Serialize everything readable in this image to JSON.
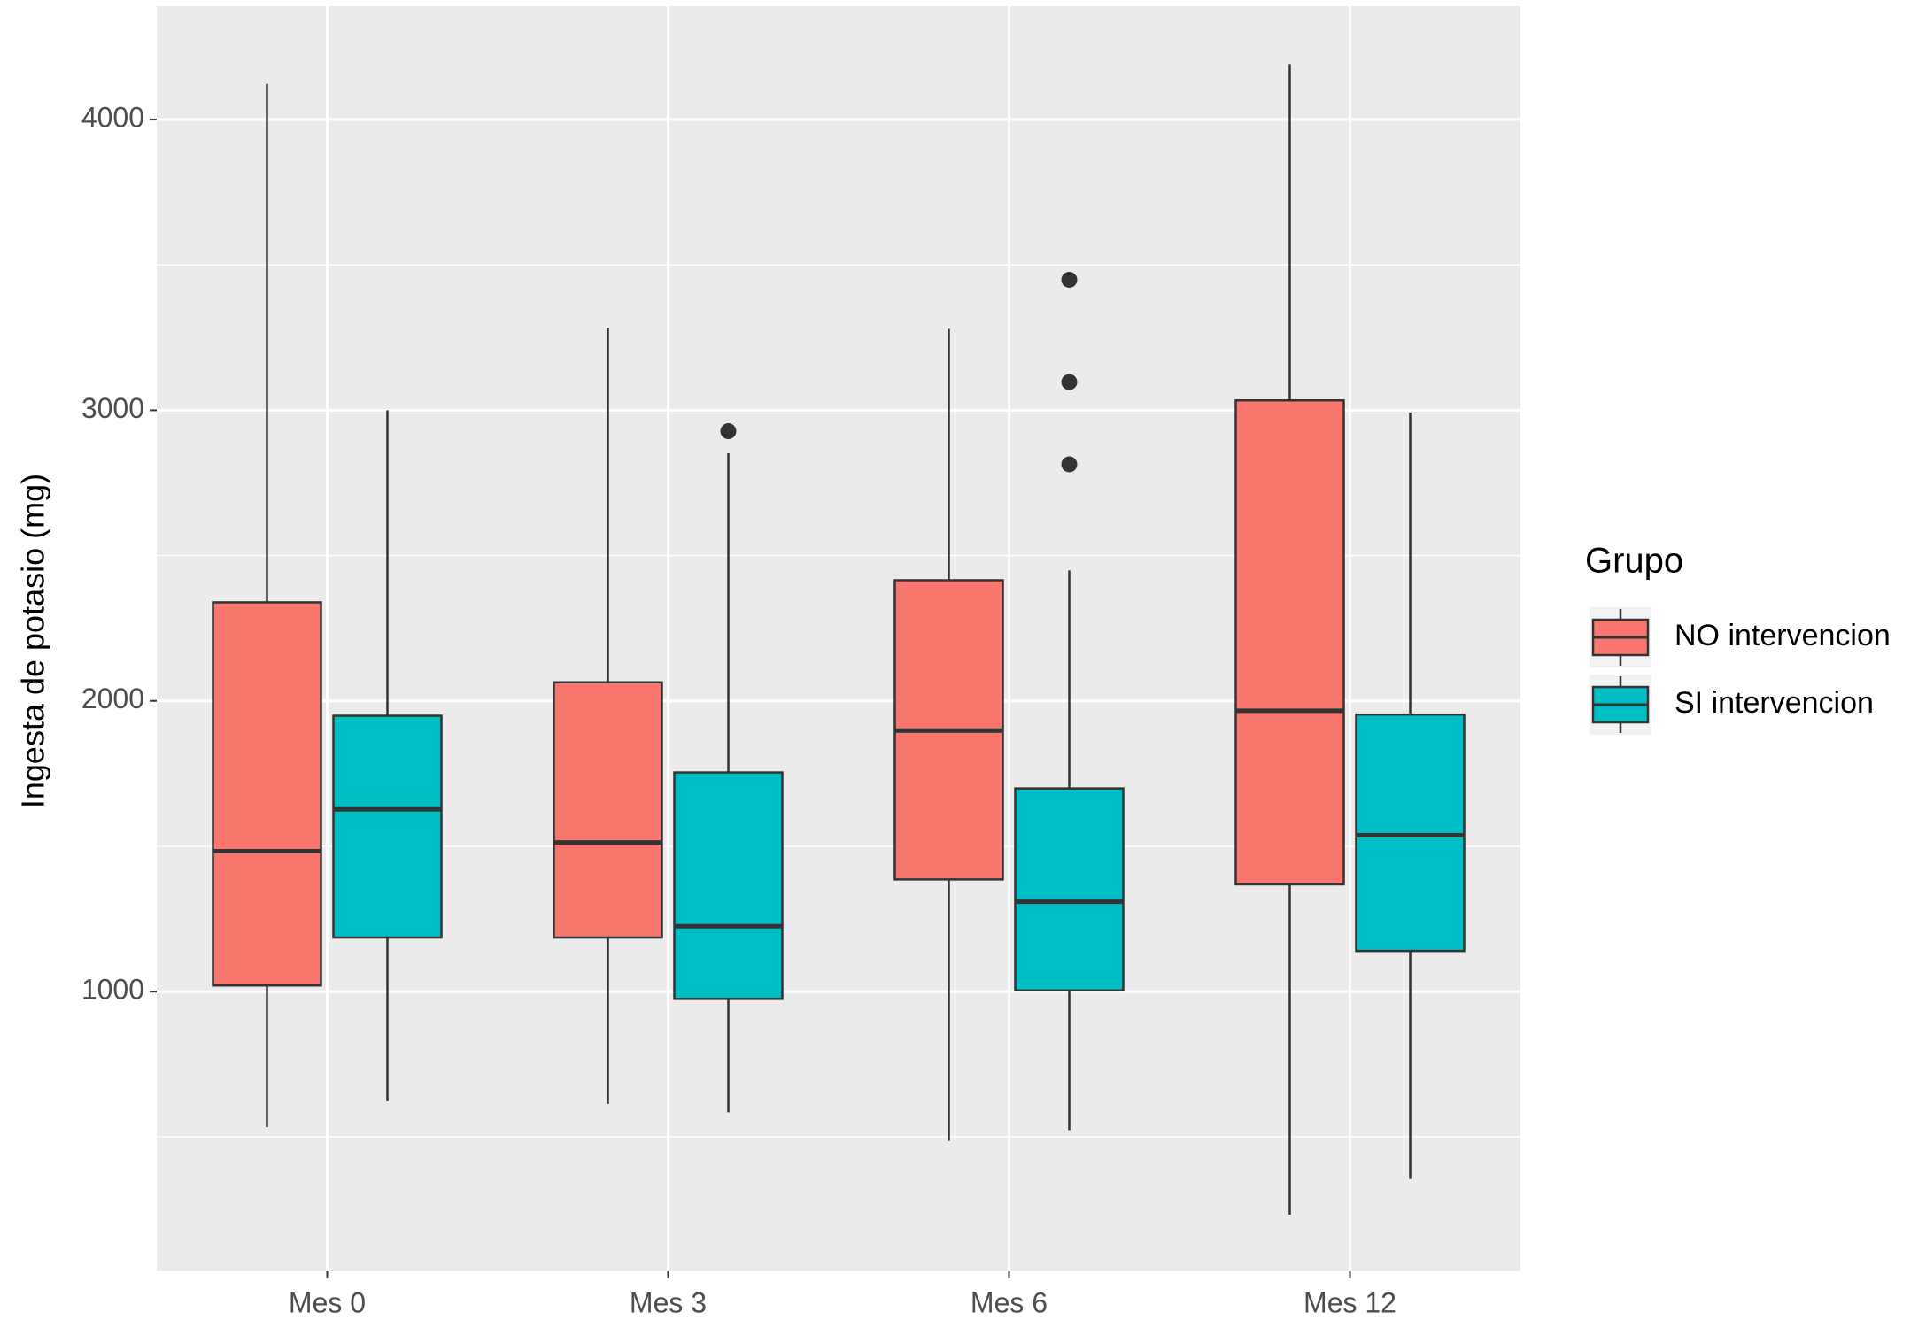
{
  "chart_data": {
    "type": "boxplot",
    "y_label": "Ingesta de potasio (mg)",
    "categories": [
      "Mes 0",
      "Mes 3",
      "Mes 6",
      "Mes 12"
    ],
    "legend_title": "Grupo",
    "series": [
      {
        "name": "NO intervencion",
        "color": "#f8766d",
        "whisker_low": [
          534,
          614,
          487,
          233
        ],
        "q1": [
          1021,
          1186,
          1386,
          1369
        ],
        "median": [
          1483,
          1513,
          1898,
          1966
        ],
        "q3": [
          2339,
          2064,
          2415,
          3034
        ],
        "whisker_high": [
          4123,
          3284,
          3280,
          4191
        ],
        "outliers": [
          [],
          [],
          [],
          []
        ]
      },
      {
        "name": "SI intervencion",
        "color": "#00bfc4",
        "whisker_low": [
          623,
          585,
          521,
          356
        ],
        "q1": [
          1186,
          975,
          1004,
          1140
        ],
        "median": [
          1627,
          1225,
          1309,
          1538
        ],
        "q3": [
          1949,
          1754,
          1699,
          1953
        ],
        "whisker_high": [
          3000,
          2852,
          2449,
          2992
        ],
        "outliers": [
          [],
          [
            2928
          ],
          [
            3449,
            3097,
            2814
          ],
          []
        ]
      }
    ],
    "ylim": [
      38,
      4390
    ],
    "yticks": [
      1000,
      2000,
      3000,
      4000
    ],
    "minor_yticks": [
      500,
      1500,
      2500,
      3500
    ],
    "grid": true
  }
}
